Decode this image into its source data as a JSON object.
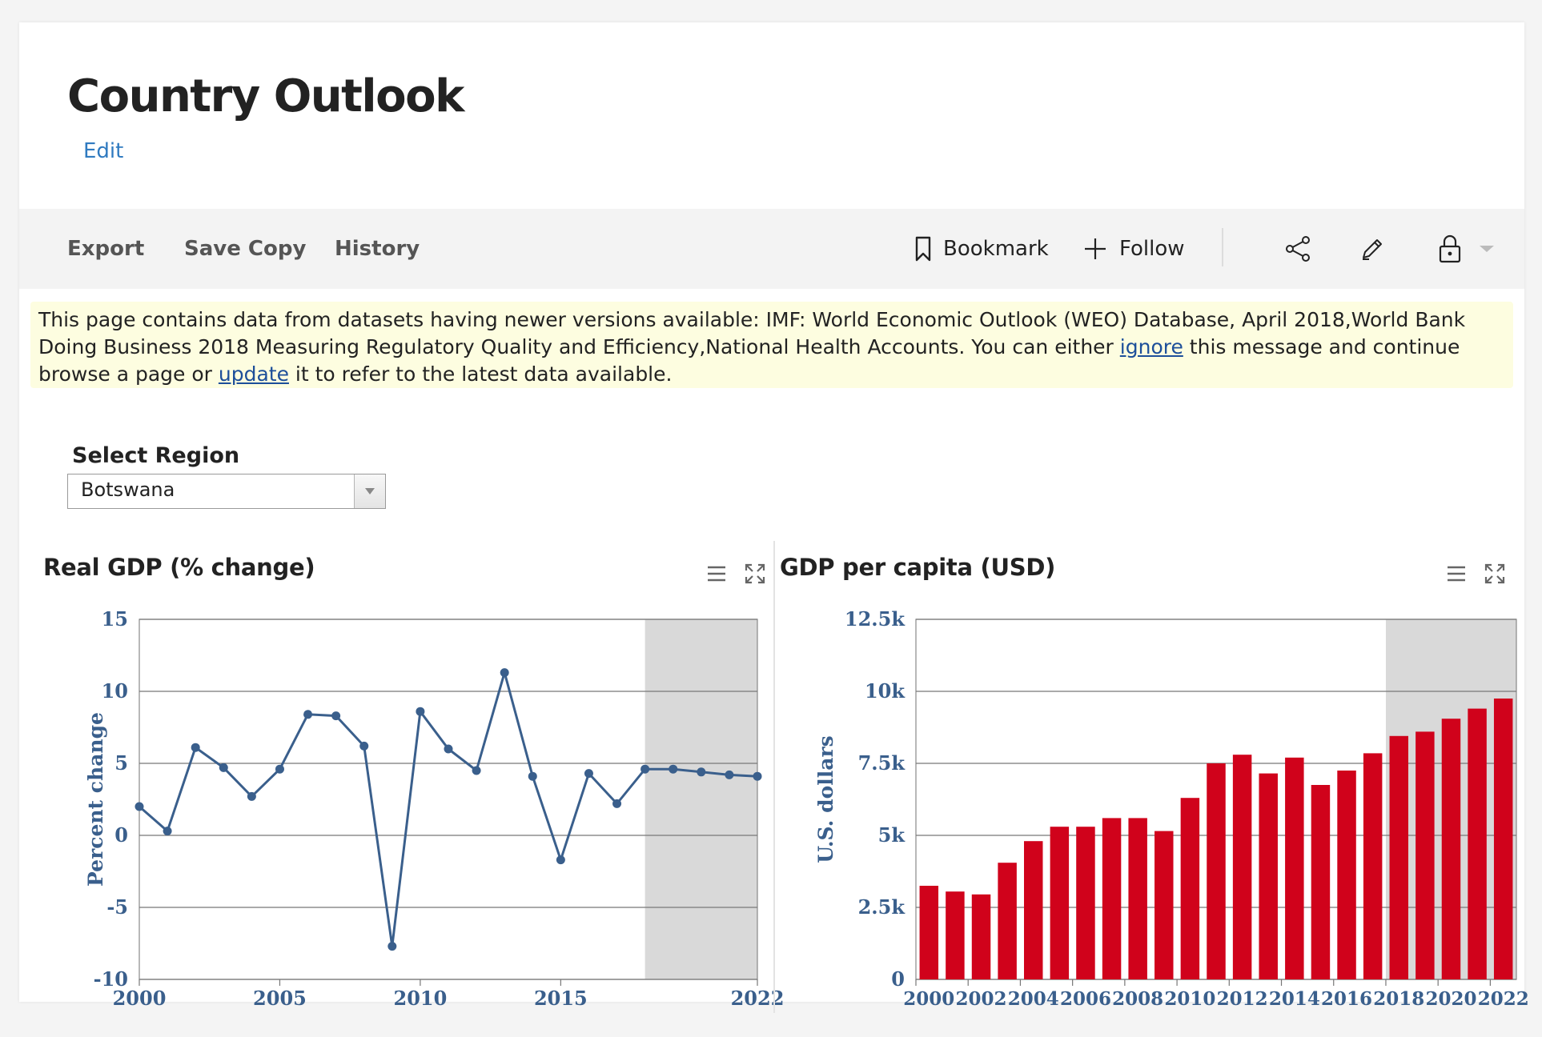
{
  "page": {
    "title": "Country Outlook",
    "edit_label": "Edit"
  },
  "toolbar": {
    "export_label": "Export",
    "save_copy_label": "Save Copy",
    "history_label": "History",
    "bookmark_label": "Bookmark",
    "follow_label": "Follow",
    "icons": [
      "bookmark-icon",
      "plus-icon",
      "share-icon",
      "pencil-icon",
      "lock-icon",
      "caret-down-icon"
    ]
  },
  "notice": {
    "text_1": "This page contains data from datasets having newer versions available: IMF: World Economic Outlook (WEO) Database, April 2018,World Bank Doing Business 2018 Measuring Regulatory Quality and Efficiency,National Health Accounts. You can either ",
    "ignore_link": "ignore",
    "text_2": " this message and continue browse a page or ",
    "update_link": "update",
    "text_3": " it to refer to the latest data available."
  },
  "region": {
    "label": "Select Region",
    "selected": "Botswana"
  },
  "colors": {
    "line": "#3a5f8c",
    "bar": "#d0021b",
    "axis_text": "#3a5f8c",
    "forecast_band": "#d9d9d9",
    "link": "#2f7ac0"
  },
  "chart_data": [
    {
      "type": "line",
      "title": "Real GDP (% change)",
      "ylabel": "Percent change",
      "xlabel": "",
      "x": [
        2000,
        2001,
        2002,
        2003,
        2004,
        2005,
        2006,
        2007,
        2008,
        2009,
        2010,
        2011,
        2012,
        2013,
        2014,
        2015,
        2016,
        2017,
        2018,
        2019,
        2020,
        2021,
        2022
      ],
      "series": [
        {
          "values": [
            2.0,
            0.3,
            6.1,
            4.7,
            2.7,
            4.6,
            8.4,
            8.3,
            6.2,
            -7.7,
            8.6,
            6.0,
            4.5,
            11.3,
            4.1,
            -1.7,
            4.3,
            2.2,
            4.6,
            4.6,
            4.4,
            4.2,
            4.1
          ]
        }
      ],
      "ylim": [
        -10,
        15
      ],
      "yticks": [
        "15",
        "10",
        "5",
        "0",
        "-5",
        "-10"
      ],
      "xticks": [
        "2000",
        "2005",
        "2010",
        "2015",
        "2022"
      ],
      "forecast_from": 2018,
      "grid": true
    },
    {
      "type": "bar",
      "title": "GDP per capita (USD)",
      "ylabel": "U.S. dollars",
      "xlabel": "",
      "categories": [
        "2000",
        "2001",
        "2002",
        "2003",
        "2004",
        "2005",
        "2006",
        "2007",
        "2008",
        "2009",
        "2010",
        "2011",
        "2012",
        "2013",
        "2014",
        "2015",
        "2016",
        "2017",
        "2018",
        "2019",
        "2020",
        "2021",
        "2022"
      ],
      "series": [
        {
          "values": [
            3250,
            3050,
            2950,
            4050,
            4800,
            5300,
            5300,
            5600,
            5600,
            5150,
            6300,
            7500,
            7800,
            7150,
            7700,
            6750,
            7250,
            7850,
            8450,
            8600,
            9050,
            9400,
            9750
          ]
        }
      ],
      "ylim": [
        0,
        12500
      ],
      "yticks": [
        "12.5k",
        "10k",
        "7.5k",
        "5k",
        "2.5k",
        "0"
      ],
      "xticks": [
        "2000",
        "2002",
        "2004",
        "2006",
        "2008",
        "2010",
        "2012",
        "2014",
        "2016",
        "2018",
        "2020",
        "2022"
      ],
      "forecast_from": 2018,
      "grid": true
    }
  ]
}
